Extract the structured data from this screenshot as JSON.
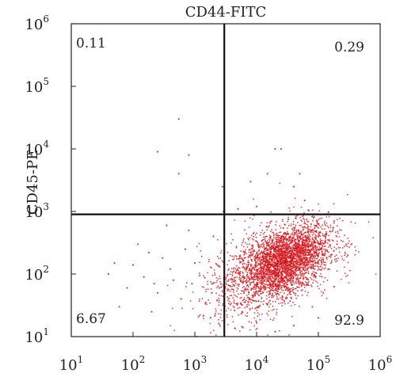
{
  "chart_data": {
    "type": "scatter",
    "title": "CD44-FITC",
    "xlabel": "",
    "ylabel": "CD45-PE",
    "x_scale": "log",
    "y_scale": "log",
    "xlim": [
      10,
      1000000
    ],
    "ylim": [
      10,
      1000000
    ],
    "x_ticks": [
      {
        "base": "10",
        "exp": "1"
      },
      {
        "base": "10",
        "exp": "2"
      },
      {
        "base": "10",
        "exp": "3"
      },
      {
        "base": "10",
        "exp": "4"
      },
      {
        "base": "10",
        "exp": "5"
      },
      {
        "base": "10",
        "exp": "6"
      }
    ],
    "y_ticks": [
      {
        "base": "10",
        "exp": "1"
      },
      {
        "base": "10",
        "exp": "2"
      },
      {
        "base": "10",
        "exp": "3"
      },
      {
        "base": "10",
        "exp": "4"
      },
      {
        "base": "10",
        "exp": "5"
      },
      {
        "base": "10",
        "exp": "6"
      }
    ],
    "gate": {
      "x": 3000,
      "y": 900
    },
    "quadrants": {
      "upper_left": "0.11",
      "upper_right": "0.29",
      "lower_left": "6.67",
      "lower_right": "92.9"
    },
    "point_color": "#d8181e",
    "grid": false,
    "legend": "none",
    "clusters": [
      {
        "center": [
          25000,
          150
        ],
        "spread": [
          0.38,
          0.3
        ],
        "count": 2200
      },
      {
        "center": [
          15000,
          110
        ],
        "spread": [
          0.55,
          0.42
        ],
        "count": 900
      },
      {
        "center": [
          40000,
          200
        ],
        "spread": [
          0.3,
          0.25
        ],
        "count": 700
      }
    ],
    "scatter_points": [
      [
        300,
        180
      ],
      [
        150,
        90
      ],
      [
        80,
        60
      ],
      [
        50,
        150
      ],
      [
        600,
        40
      ],
      [
        200,
        25
      ],
      [
        120,
        300
      ],
      [
        700,
        250
      ],
      [
        400,
        120
      ],
      [
        250,
        50
      ],
      [
        900,
        70
      ],
      [
        60,
        30
      ],
      [
        180,
        220
      ],
      [
        1500,
        35
      ],
      [
        1000,
        150
      ],
      [
        2000,
        400
      ],
      [
        350,
        600
      ],
      [
        800,
        500
      ],
      [
        450,
        80
      ],
      [
        1200,
        95
      ],
      [
        40,
        100
      ],
      [
        100,
        140
      ],
      [
        220,
        70
      ],
      [
        1800,
        20
      ],
      [
        2500,
        60
      ],
      [
        30,
        20
      ],
      [
        550,
        4000
      ],
      [
        550,
        30000
      ],
      [
        250,
        9000
      ],
      [
        800,
        8000
      ],
      [
        2800,
        2500
      ],
      [
        3000,
        1500
      ],
      [
        20000,
        10000
      ],
      [
        25000,
        10000
      ],
      [
        15000,
        4000
      ],
      [
        8000,
        3000
      ],
      [
        50000,
        4000
      ],
      [
        40000,
        2500
      ],
      [
        60000,
        1500
      ],
      [
        10000,
        1200
      ],
      [
        5000,
        1100
      ],
      [
        2900,
        1000
      ],
      [
        200000,
        300
      ],
      [
        180000,
        700
      ],
      [
        150000,
        120
      ],
      [
        120000,
        50
      ],
      [
        80000,
        30
      ],
      [
        300000,
        200
      ],
      [
        100000,
        20
      ],
      [
        40000,
        15
      ],
      [
        20000,
        12
      ],
      [
        6000,
        14
      ]
    ]
  }
}
